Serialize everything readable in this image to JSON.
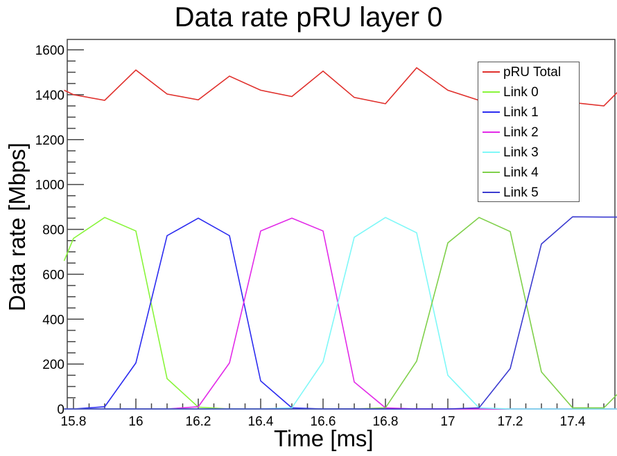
{
  "chart_data": {
    "type": "line",
    "title": "Data rate pRU layer 0",
    "xlabel": "Time [ms]",
    "ylabel": "Data rate [Mbps]",
    "xlim": [
      15.77,
      17.55
    ],
    "ylim": [
      0,
      1650
    ],
    "xticks": [
      "15.8",
      "16",
      "16.2",
      "16.4",
      "16.6",
      "16.8",
      "17",
      "17.2",
      "17.4"
    ],
    "yticks": [
      "0",
      "200",
      "400",
      "600",
      "800",
      "1000",
      "1200",
      "1400",
      "1600"
    ],
    "grid": false,
    "legend_position": "top-right",
    "x": [
      15.77,
      15.8,
      15.9,
      16.0,
      16.1,
      16.2,
      16.3,
      16.4,
      16.5,
      16.6,
      16.7,
      16.8,
      16.9,
      17.0,
      17.1,
      17.2,
      17.3,
      17.4,
      17.5,
      17.55
    ],
    "series": [
      {
        "name": "pRU Total",
        "color": "#e0302c",
        "values": [
          1420,
          1400,
          1375,
          1510,
          1403,
          1377,
          1483,
          1420,
          1392,
          1505,
          1388,
          1360,
          1520,
          1420,
          1375,
          1405,
          1380,
          1365,
          1350,
          1420
        ]
      },
      {
        "name": "Link 0",
        "color": "#88f53a",
        "values": [
          660,
          760,
          853,
          793,
          135,
          8,
          0,
          0,
          0,
          0,
          0,
          0,
          0,
          0,
          0,
          0,
          0,
          0,
          0,
          0
        ]
      },
      {
        "name": "Link 1",
        "color": "#2b2bf0",
        "values": [
          0,
          0,
          10,
          205,
          772,
          850,
          772,
          125,
          5,
          0,
          0,
          0,
          0,
          0,
          0,
          0,
          0,
          0,
          0,
          0
        ]
      },
      {
        "name": "Link 2",
        "color": "#e22ae8",
        "values": [
          0,
          0,
          0,
          0,
          0,
          10,
          205,
          793,
          850,
          793,
          120,
          5,
          0,
          0,
          0,
          0,
          0,
          0,
          0,
          0
        ]
      },
      {
        "name": "Link 3",
        "color": "#7ff8f8",
        "values": [
          0,
          0,
          0,
          0,
          0,
          0,
          0,
          0,
          5,
          210,
          765,
          853,
          785,
          150,
          5,
          0,
          0,
          0,
          0,
          0
        ]
      },
      {
        "name": "Link 4",
        "color": "#7fd04a",
        "values": [
          0,
          0,
          0,
          0,
          0,
          0,
          0,
          0,
          0,
          0,
          0,
          5,
          213,
          740,
          853,
          790,
          165,
          5,
          5,
          75
        ]
      },
      {
        "name": "Link 5",
        "color": "#3b3bd0",
        "values": [
          0,
          0,
          0,
          0,
          0,
          0,
          0,
          0,
          0,
          0,
          0,
          0,
          0,
          0,
          5,
          180,
          735,
          856,
          855,
          855
        ]
      }
    ]
  },
  "legend": {
    "items": [
      {
        "label": "pRU Total",
        "color": "#e0302c"
      },
      {
        "label": "Link 0",
        "color": "#88f53a"
      },
      {
        "label": "Link 1",
        "color": "#2b2bf0"
      },
      {
        "label": "Link 2",
        "color": "#e22ae8"
      },
      {
        "label": "Link 3",
        "color": "#7ff8f8"
      },
      {
        "label": "Link 4",
        "color": "#7fd04a"
      },
      {
        "label": "Link 5",
        "color": "#3b3bd0"
      }
    ]
  }
}
